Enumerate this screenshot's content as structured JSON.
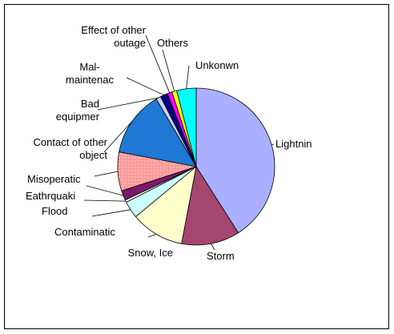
{
  "chart_data": {
    "type": "pie",
    "categories": [
      "Lightnin",
      "Storm",
      "Snow, Ice",
      "Contaminatic",
      "Flood",
      "Eathrquaki",
      "Misoperatic",
      "Contact of other object",
      "Bad equipmer",
      "Mal-maintenac",
      "Effect of other outage",
      "Others",
      "Unkonwn"
    ],
    "values": [
      41,
      12,
      11,
      3.5,
      0.5,
      2,
      8,
      13.5,
      1,
      1.5,
      1,
      1,
      4
    ],
    "colors": [
      "#aab0ff",
      "#a5466f",
      "#ffffcc",
      "#ccffff",
      "#ffffff",
      "#7a1a6e",
      "#ff9a9a",
      "#1f78d4",
      "#ccd0ff",
      "#000080",
      "#ff00ff",
      "#ffff00",
      "#00ffff"
    ]
  }
}
